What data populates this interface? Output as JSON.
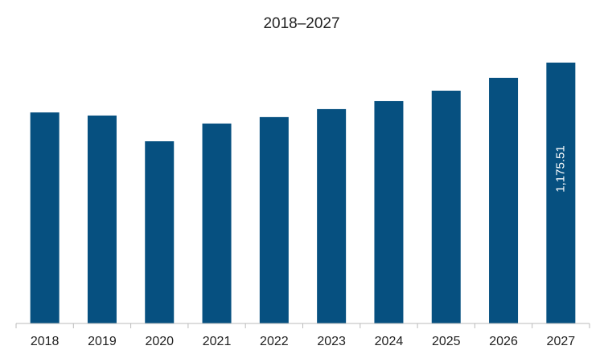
{
  "chart_data": {
    "type": "bar",
    "title": "2018–2027",
    "categories": [
      "2018",
      "2019",
      "2020",
      "2021",
      "2022",
      "2023",
      "2024",
      "2025",
      "2026",
      "2027"
    ],
    "values": [
      951,
      937,
      821,
      901,
      930,
      966,
      1002,
      1049,
      1107,
      1175.51
    ],
    "value_labels": [
      null,
      null,
      null,
      null,
      null,
      null,
      null,
      null,
      null,
      "1,175.51"
    ],
    "color": "#065080"
  }
}
